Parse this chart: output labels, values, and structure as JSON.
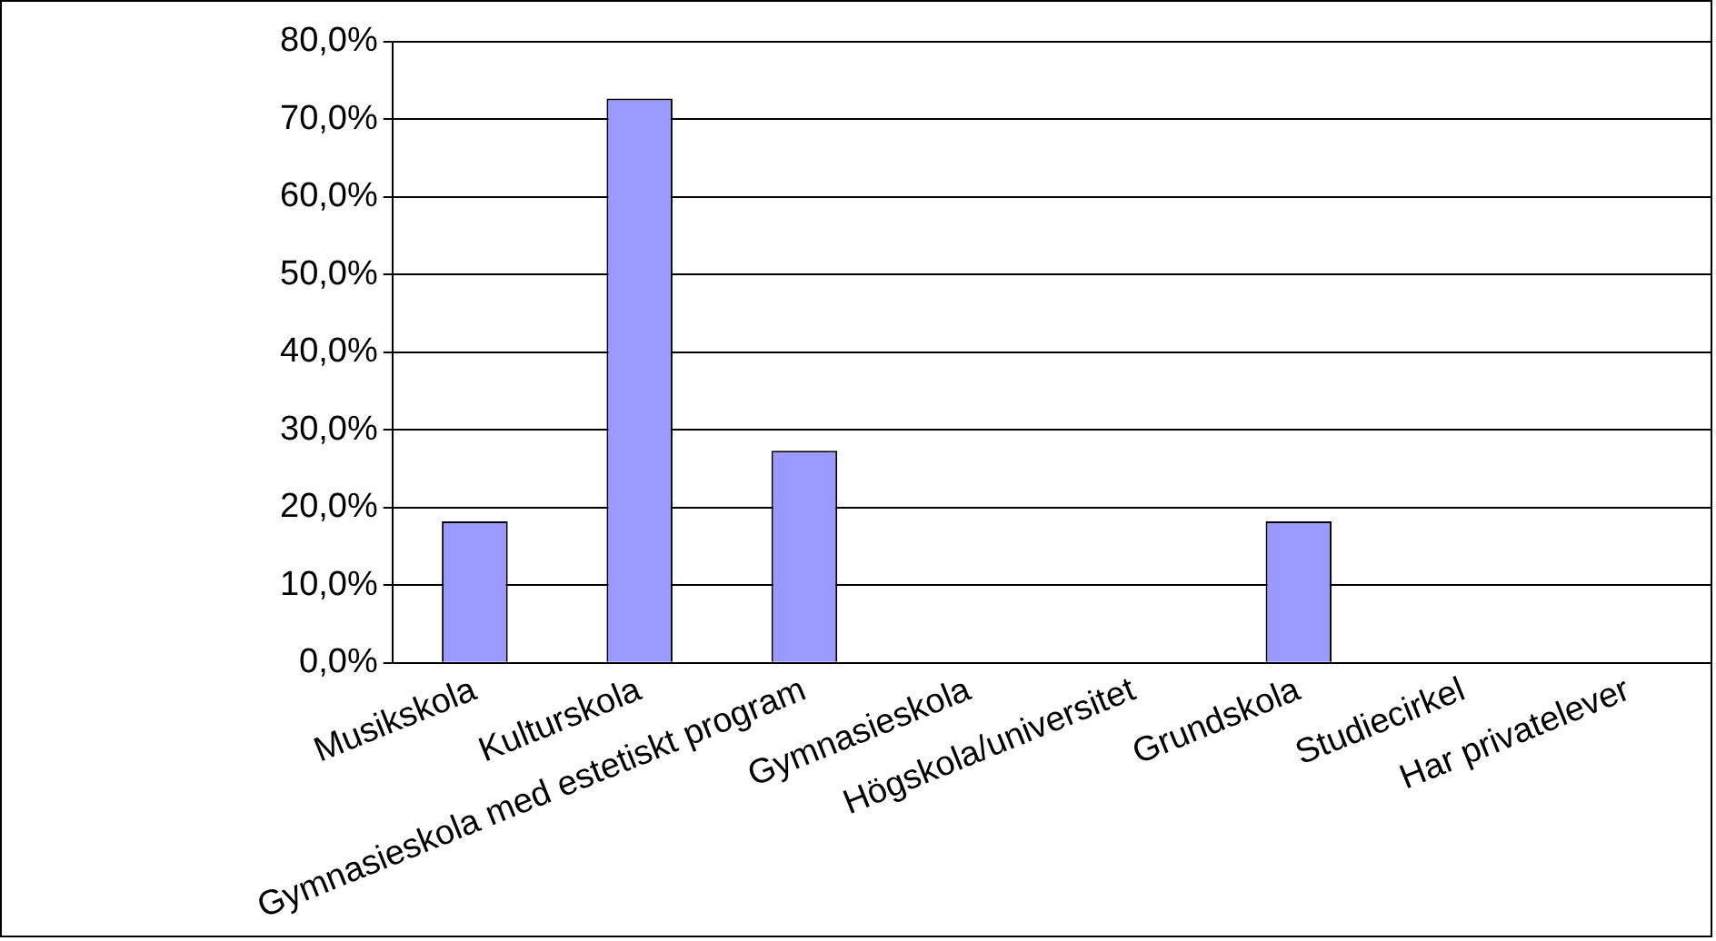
{
  "chart_data": {
    "type": "bar",
    "categories": [
      "Musikskola",
      "Kulturskola",
      "Gymnasieskola med estetiskt program",
      "Gymnasieskola",
      "Högskola/universitet",
      "Grundskola",
      "Studiecirkel",
      "Har privatelever"
    ],
    "values": [
      18.2,
      72.7,
      27.3,
      0,
      0,
      18.2,
      0,
      0
    ],
    "color": "#9999ff",
    "ylim": [
      0,
      80
    ],
    "yticks": [
      {
        "value": 0,
        "label": "0,0%"
      },
      {
        "value": 10,
        "label": "10,0%"
      },
      {
        "value": 20,
        "label": "20,0%"
      },
      {
        "value": 30,
        "label": "30,0%"
      },
      {
        "value": 40,
        "label": "40,0%"
      },
      {
        "value": 50,
        "label": "50,0%"
      },
      {
        "value": 60,
        "label": "60,0%"
      },
      {
        "value": 70,
        "label": "70,0%"
      },
      {
        "value": 80,
        "label": "80,0%"
      }
    ],
    "grid": "y",
    "legend": false
  }
}
